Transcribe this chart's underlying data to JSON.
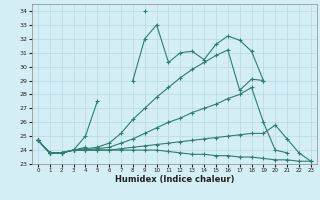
{
  "x": [
    0,
    1,
    2,
    3,
    4,
    5,
    6,
    7,
    8,
    9,
    10,
    11,
    12,
    13,
    14,
    15,
    16,
    17,
    18,
    19,
    20,
    21,
    22,
    23
  ],
  "line1": [
    24.7,
    23.8,
    23.8,
    24.0,
    25.0,
    27.5,
    null,
    null,
    null,
    34.0,
    null,
    null,
    null,
    null,
    null,
    null,
    null,
    null,
    null,
    null,
    null,
    null,
    null,
    null
  ],
  "line2": [
    24.7,
    23.8,
    23.8,
    24.0,
    24.2,
    null,
    null,
    null,
    29.0,
    32.0,
    33.0,
    30.3,
    31.0,
    31.1,
    30.5,
    31.6,
    32.2,
    31.9,
    31.1,
    29.0,
    null,
    null,
    null,
    null
  ],
  "line3": [
    24.7,
    23.8,
    23.8,
    24.0,
    24.1,
    24.2,
    24.5,
    25.2,
    26.2,
    27.0,
    27.8,
    28.5,
    29.2,
    29.8,
    30.3,
    30.8,
    31.2,
    28.3,
    29.1,
    29.0,
    null,
    null,
    null,
    null
  ],
  "line4": [
    24.7,
    23.8,
    23.8,
    24.0,
    24.0,
    24.1,
    24.2,
    24.5,
    24.8,
    25.2,
    25.6,
    26.0,
    26.3,
    26.7,
    27.0,
    27.3,
    27.7,
    28.0,
    28.5,
    26.0,
    24.0,
    23.8,
    null,
    null
  ],
  "line5": [
    24.7,
    23.8,
    23.8,
    24.0,
    24.0,
    24.0,
    24.0,
    24.1,
    24.2,
    24.3,
    24.4,
    24.5,
    24.6,
    24.7,
    24.8,
    24.9,
    25.0,
    25.1,
    25.2,
    25.2,
    25.8,
    24.8,
    23.8,
    23.2
  ],
  "line6": [
    24.7,
    23.8,
    23.8,
    24.0,
    24.0,
    24.0,
    24.0,
    24.0,
    24.0,
    24.0,
    24.0,
    23.9,
    23.8,
    23.7,
    23.7,
    23.6,
    23.6,
    23.5,
    23.5,
    23.4,
    23.3,
    23.3,
    23.2,
    23.2
  ],
  "color": "#2e7d6e",
  "bg_color": "#d4eef5",
  "grid_color": "#b8d8e0",
  "xlabel": "Humidex (Indice chaleur)",
  "ylim": [
    23.0,
    34.5
  ],
  "xlim": [
    -0.5,
    23.5
  ],
  "yticks": [
    23,
    24,
    25,
    26,
    27,
    28,
    29,
    30,
    31,
    32,
    33,
    34
  ],
  "xticks": [
    0,
    1,
    2,
    3,
    4,
    5,
    6,
    7,
    8,
    9,
    10,
    11,
    12,
    13,
    14,
    15,
    16,
    17,
    18,
    19,
    20,
    21,
    22,
    23
  ]
}
